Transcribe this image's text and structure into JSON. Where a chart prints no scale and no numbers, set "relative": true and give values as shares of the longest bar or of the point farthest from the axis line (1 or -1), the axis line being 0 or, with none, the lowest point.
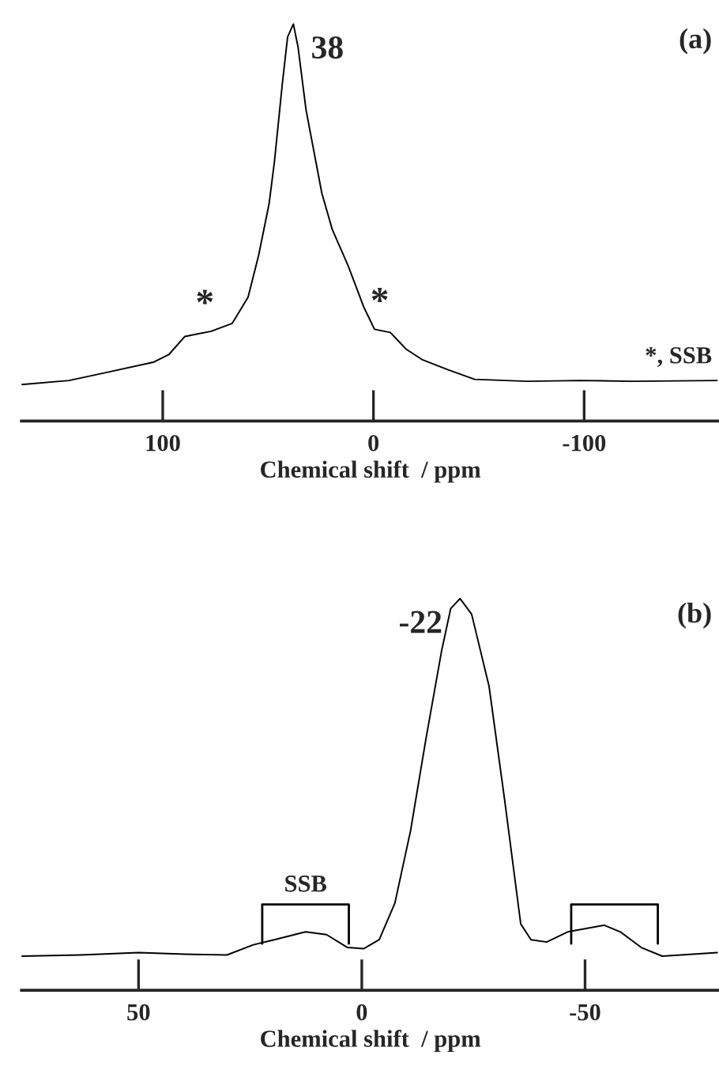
{
  "chart_data": [
    {
      "type": "line",
      "relative": true,
      "title": "(a)",
      "xlabel": "Chemical shift  / ppm",
      "xlim": [
        167,
        -164
      ],
      "xticks": [
        100,
        0,
        -100
      ],
      "grid": false,
      "legend": false,
      "tick_labels": "x",
      "series": [
        {
          "color": "#000000",
          "x": [
            167,
            144.5,
            127,
            104.5,
            97,
            89.5,
            77,
            67,
            59.5,
            54.5,
            49.5,
            47,
            43.25,
            40.75,
            38,
            35.75,
            32,
            28.25,
            24.5,
            19.5,
            12,
            4.5,
            -0.5,
            -8,
            -15.5,
            -23,
            -35.5,
            -48,
            -73,
            -98,
            -123,
            -163
          ],
          "values": [
            0.092,
            0.102,
            0.122,
            0.148,
            0.168,
            0.213,
            0.226,
            0.246,
            0.312,
            0.417,
            0.548,
            0.653,
            0.849,
            0.967,
            1.0,
            0.941,
            0.784,
            0.679,
            0.574,
            0.482,
            0.391,
            0.286,
            0.231,
            0.223,
            0.181,
            0.155,
            0.129,
            0.105,
            0.1,
            0.102,
            0.1,
            0.102
          ]
        }
      ],
      "annotations": [
        {
          "text": "38",
          "x": 38,
          "y": 1.0
        },
        {
          "text": "*",
          "x": 80,
          "y": 0.226
        },
        {
          "text": "*",
          "x": -3,
          "y": 0.231
        },
        "*, SSB"
      ]
    },
    {
      "type": "line",
      "relative": true,
      "title": "(b)",
      "xlabel": "Chemical shift  / ppm",
      "xlim": [
        76.2,
        -80
      ],
      "xticks": [
        50,
        0,
        -50
      ],
      "grid": false,
      "legend": false,
      "tick_labels": "x",
      "series": [
        {
          "color": "#000000",
          "x": [
            76.2,
            63,
            50,
            39.6,
            30.2,
            24.3,
            19.6,
            12.6,
            7.9,
            3.2,
            -0.4,
            -3.9,
            -7.4,
            -10.9,
            -14.4,
            -17.9,
            -19.9,
            -22,
            -24.6,
            -28.5,
            -32,
            -35.6,
            -37.9,
            -41.4,
            -46.1,
            -54.3,
            -57.9,
            -62.6,
            -67.3,
            -79.6
          ],
          "values": [
            0.087,
            0.09,
            0.096,
            0.092,
            0.09,
            0.116,
            0.129,
            0.149,
            0.142,
            0.109,
            0.106,
            0.129,
            0.222,
            0.406,
            0.644,
            0.868,
            0.974,
            1.0,
            0.96,
            0.776,
            0.485,
            0.169,
            0.129,
            0.123,
            0.149,
            0.166,
            0.149,
            0.109,
            0.087,
            0.096
          ]
        }
      ],
      "annotations": [
        {
          "text": "-22",
          "x": -22,
          "y": 1.0
        },
        {
          "text": "SSB",
          "x": 12.6,
          "y": 0.149
        }
      ]
    }
  ]
}
